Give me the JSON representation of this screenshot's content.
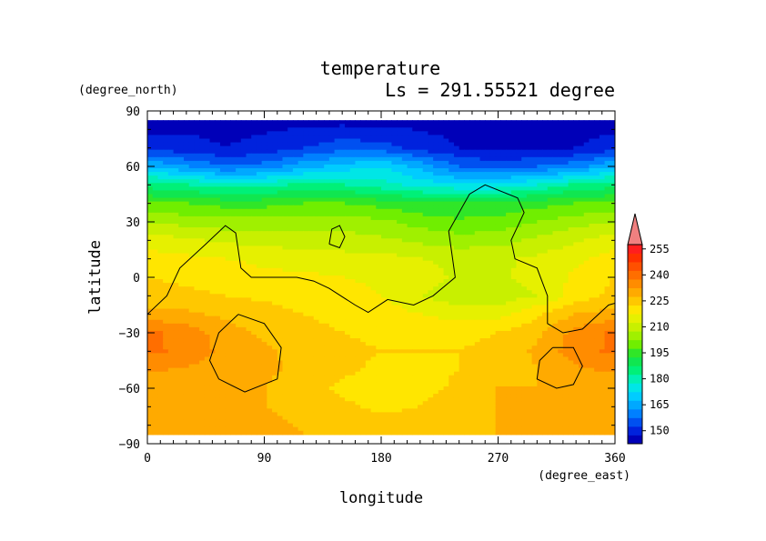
{
  "chart_data": {
    "type": "heatmap",
    "title": "temperature",
    "subtitle": "Ls = 291.55521 degree",
    "xlabel": "longitude",
    "ylabel": "latitude",
    "x_units": "(degree_east)",
    "y_units": "(degree_north)",
    "xlim": [
      0,
      360
    ],
    "ylim": [
      -90,
      90
    ],
    "x_ticks": [
      "0",
      "90",
      "180",
      "270",
      "360"
    ],
    "y_ticks": [
      "90",
      "60",
      "30",
      "0",
      "−30",
      "−60",
      "−90"
    ],
    "colorbar": {
      "levels": [
        145,
        150,
        155,
        160,
        165,
        170,
        175,
        180,
        185,
        190,
        195,
        200,
        205,
        210,
        215,
        220,
        225,
        230,
        235,
        240,
        245,
        250,
        255,
        260
      ],
      "labels": [
        "150",
        "165",
        "180",
        "195",
        "210",
        "225",
        "240",
        "255"
      ],
      "colors": [
        "#0000b8",
        "#0022dd",
        "#0050f0",
        "#0080ff",
        "#00a8ff",
        "#00ccff",
        "#00e6e6",
        "#00f0b4",
        "#00f078",
        "#10e650",
        "#30e628",
        "#70ee00",
        "#a0f000",
        "#c8f000",
        "#e6f000",
        "#ffe600",
        "#ffc800",
        "#ffaa00",
        "#ff8c00",
        "#ff6e00",
        "#ff5000",
        "#ff3000",
        "#ff1e1e"
      ],
      "over_color": "#f08080"
    },
    "grid": {
      "lons": [
        0,
        30,
        60,
        90,
        120,
        150,
        180,
        210,
        240,
        270,
        300,
        330,
        360
      ],
      "lats": [
        85,
        70,
        60,
        50,
        40,
        30,
        20,
        10,
        0,
        -10,
        -20,
        -30,
        -40,
        -50,
        -60,
        -70,
        -85
      ],
      "values": [
        [
          148,
          148,
          148,
          148,
          148,
          148,
          148,
          148,
          148,
          148,
          148,
          148,
          148
        ],
        [
          152,
          152,
          150,
          152,
          155,
          158,
          157,
          153,
          150,
          148,
          149,
          150,
          152
        ],
        [
          170,
          165,
          160,
          162,
          168,
          172,
          175,
          168,
          160,
          158,
          160,
          163,
          170
        ],
        [
          188,
          185,
          182,
          183,
          186,
          185,
          182,
          178,
          176,
          176,
          180,
          186,
          188
        ],
        [
          200,
          200,
          198,
          198,
          200,
          200,
          198,
          196,
          195,
          196,
          198,
          200,
          200
        ],
        [
          210,
          208,
          207,
          207,
          208,
          208,
          206,
          203,
          201,
          202,
          205,
          208,
          210
        ],
        [
          218,
          216,
          214,
          213,
          212,
          212,
          211,
          209,
          207,
          208,
          211,
          214,
          218
        ],
        [
          222,
          221,
          220,
          219,
          218,
          217,
          217,
          215,
          214,
          214,
          216,
          219,
          222
        ],
        [
          225,
          224,
          223,
          221,
          221,
          220,
          219,
          217,
          214,
          214,
          217,
          221,
          225
        ],
        [
          227,
          226,
          225,
          224,
          223,
          222,
          220,
          215,
          212,
          212,
          215,
          222,
          227
        ],
        [
          232,
          231,
          229,
          227,
          225,
          224,
          223,
          220,
          218,
          218,
          224,
          230,
          232
        ],
        [
          241,
          238,
          232,
          229,
          226,
          225,
          224,
          224,
          224,
          225,
          229,
          237,
          241
        ],
        [
          241,
          239,
          233,
          231,
          228,
          226,
          225,
          225,
          225,
          226,
          231,
          238,
          241
        ],
        [
          236,
          234,
          232,
          231,
          229,
          226,
          224,
          224,
          225,
          226,
          230,
          234,
          236
        ],
        [
          231,
          231,
          230,
          230,
          227,
          224,
          222,
          223,
          226,
          230,
          230,
          231,
          231
        ],
        [
          231,
          230,
          230,
          230,
          229,
          226,
          224,
          225,
          228,
          230,
          230,
          230,
          231
        ],
        [
          231,
          231,
          231,
          231,
          230,
          229,
          228,
          228,
          229,
          230,
          230,
          230,
          231
        ]
      ]
    },
    "contours": [
      [
        [
          0,
          -20
        ],
        [
          15,
          -10
        ],
        [
          25,
          5
        ],
        [
          45,
          18
        ],
        [
          60,
          28
        ],
        [
          68,
          24
        ],
        [
          72,
          5
        ],
        [
          80,
          0
        ],
        [
          115,
          0
        ],
        [
          128,
          -2
        ],
        [
          140,
          -6
        ],
        [
          160,
          -15
        ],
        [
          170,
          -19
        ],
        [
          185,
          -12
        ],
        [
          205,
          -15
        ],
        [
          220,
          -10
        ],
        [
          237,
          0
        ],
        [
          232,
          25
        ],
        [
          248,
          45
        ],
        [
          260,
          50
        ],
        [
          285,
          43
        ],
        [
          290,
          35
        ],
        [
          280,
          20
        ],
        [
          283,
          10
        ],
        [
          300,
          5
        ],
        [
          308,
          -10
        ],
        [
          308,
          -25
        ],
        [
          320,
          -30
        ],
        [
          335,
          -28
        ],
        [
          355,
          -15
        ],
        [
          360,
          -14
        ]
      ],
      [
        [
          140,
          18
        ],
        [
          142,
          26
        ],
        [
          148,
          28
        ],
        [
          152,
          22
        ],
        [
          148,
          16
        ],
        [
          140,
          18
        ]
      ],
      [
        [
          70,
          -20
        ],
        [
          90,
          -25
        ],
        [
          103,
          -38
        ],
        [
          100,
          -55
        ],
        [
          75,
          -62
        ],
        [
          55,
          -55
        ],
        [
          48,
          -45
        ],
        [
          55,
          -30
        ],
        [
          70,
          -20
        ]
      ],
      [
        [
          312,
          -38
        ],
        [
          328,
          -38
        ],
        [
          335,
          -48
        ],
        [
          328,
          -58
        ],
        [
          315,
          -60
        ],
        [
          300,
          -55
        ],
        [
          302,
          -45
        ],
        [
          312,
          -38
        ]
      ]
    ]
  }
}
